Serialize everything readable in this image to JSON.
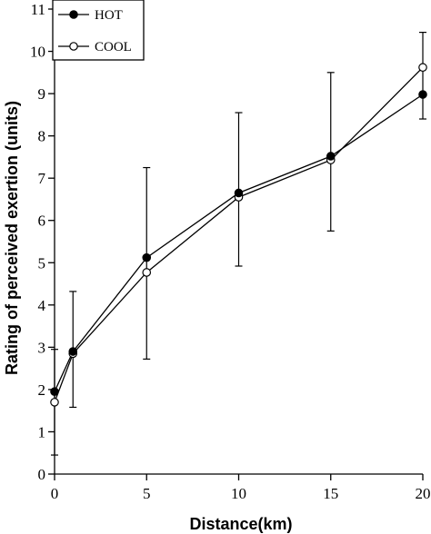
{
  "chart_data": {
    "type": "line",
    "xlabel": "Distance(km)",
    "ylabel": "Rating of perceived exertion (units)",
    "xlim": [
      0,
      20
    ],
    "ylim": [
      0,
      11
    ],
    "x_ticks": [
      0,
      5,
      10,
      15,
      20
    ],
    "y_ticks": [
      0,
      1,
      2,
      3,
      4,
      5,
      6,
      7,
      8,
      9,
      10,
      11
    ],
    "grid": false,
    "legend_position": "top-left",
    "series": [
      {
        "name": "HOT",
        "marker": "filled-circle",
        "x": [
          0,
          1,
          5,
          10,
          15,
          20
        ],
        "y": [
          1.95,
          2.9,
          5.12,
          6.65,
          7.52,
          8.98
        ],
        "error_high": [
          2.95,
          4.32,
          7.25,
          8.55,
          9.5,
          9.62
        ],
        "error_low": [
          0.45,
          1.58,
          2.72,
          4.92,
          5.75,
          8.4
        ]
      },
      {
        "name": "COOL",
        "marker": "open-circle",
        "x": [
          0,
          1,
          5,
          10,
          15,
          20
        ],
        "y": [
          1.7,
          2.85,
          4.77,
          6.55,
          7.43,
          9.62
        ],
        "error_high": [
          null,
          null,
          null,
          null,
          null,
          10.45
        ],
        "error_low": [
          null,
          null,
          null,
          null,
          null,
          null
        ]
      }
    ]
  }
}
